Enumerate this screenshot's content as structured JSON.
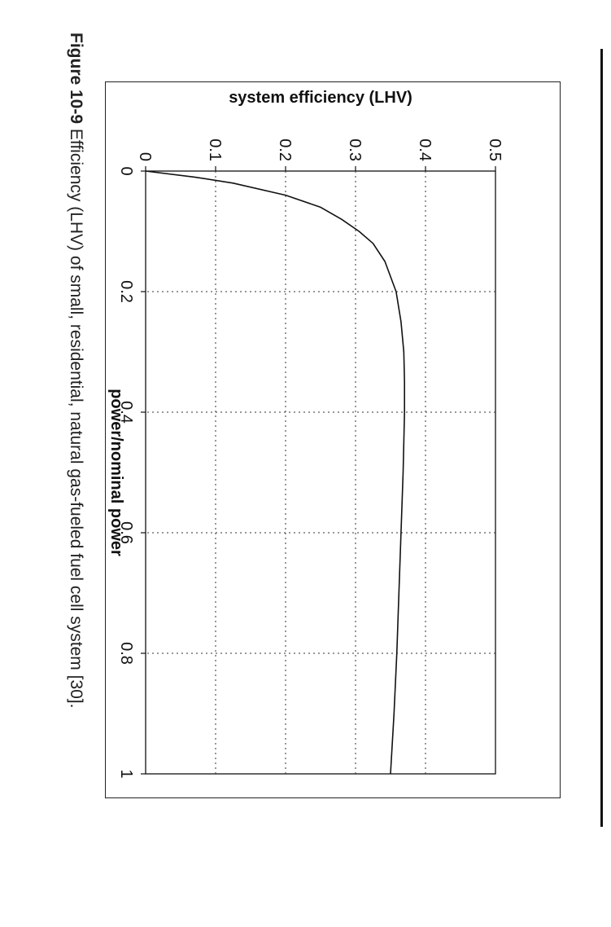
{
  "caption": {
    "label": "Figure 10-9",
    "text": "Efficiency (LHV) of small, residential, natural gas-fueled fuel cell system [30]."
  },
  "chart_data": {
    "type": "line",
    "title": "",
    "xlabel": "power/nominal power",
    "ylabel": "system efficiency (LHV)",
    "xlim": [
      0,
      1
    ],
    "ylim": [
      0,
      0.5
    ],
    "xticks": [
      0,
      0.2,
      0.4,
      0.6,
      0.8,
      1
    ],
    "xtick_labels": [
      "0",
      "0.2",
      "0.4",
      "0.6",
      "0.8",
      "1"
    ],
    "yticks": [
      0,
      0.1,
      0.2,
      0.3,
      0.4,
      0.5
    ],
    "ytick_labels": [
      "0",
      "0.1",
      "0.2",
      "0.3",
      "0.4",
      "0.5"
    ],
    "grid": true,
    "series": [
      {
        "x": [
          0,
          0.01,
          0.02,
          0.04,
          0.06,
          0.08,
          0.1,
          0.12,
          0.15,
          0.2,
          0.25,
          0.3,
          0.35,
          0.4,
          0.5,
          0.6,
          0.7,
          0.8,
          0.9,
          1.0
        ],
        "y": [
          0,
          0.07,
          0.125,
          0.2,
          0.25,
          0.28,
          0.305,
          0.325,
          0.342,
          0.358,
          0.365,
          0.369,
          0.37,
          0.37,
          0.368,
          0.365,
          0.362,
          0.359,
          0.355,
          0.35
        ]
      }
    ]
  }
}
